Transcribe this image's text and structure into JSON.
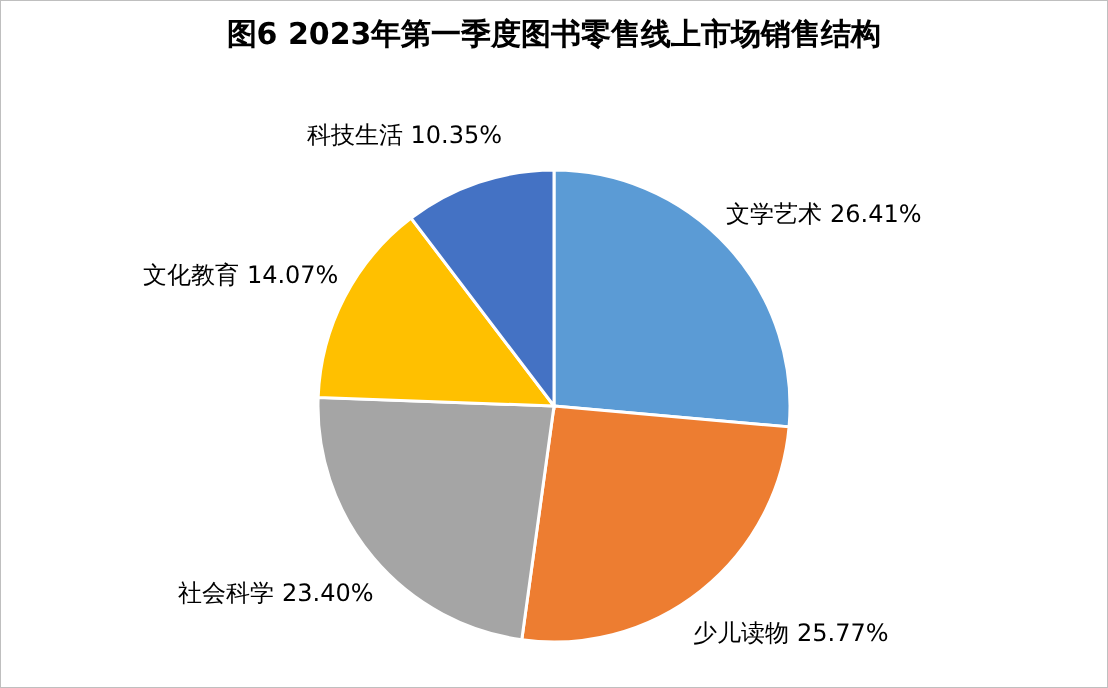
{
  "chart_data": {
    "type": "pie",
    "title": "图6  2023年第一季度图书零售线上市场销售结构",
    "categories": [
      "文学艺术",
      "少儿读物",
      "社会科学",
      "文化教育",
      "科技生活"
    ],
    "values": [
      26.41,
      25.77,
      23.4,
      14.07,
      10.35
    ],
    "value_labels": [
      "26.41%",
      "25.77%",
      "23.40%",
      "14.07%",
      "10.35%"
    ],
    "colors": [
      "#5b9bd5",
      "#ed7d31",
      "#a5a5a5",
      "#ffc000",
      "#4472c4"
    ]
  }
}
